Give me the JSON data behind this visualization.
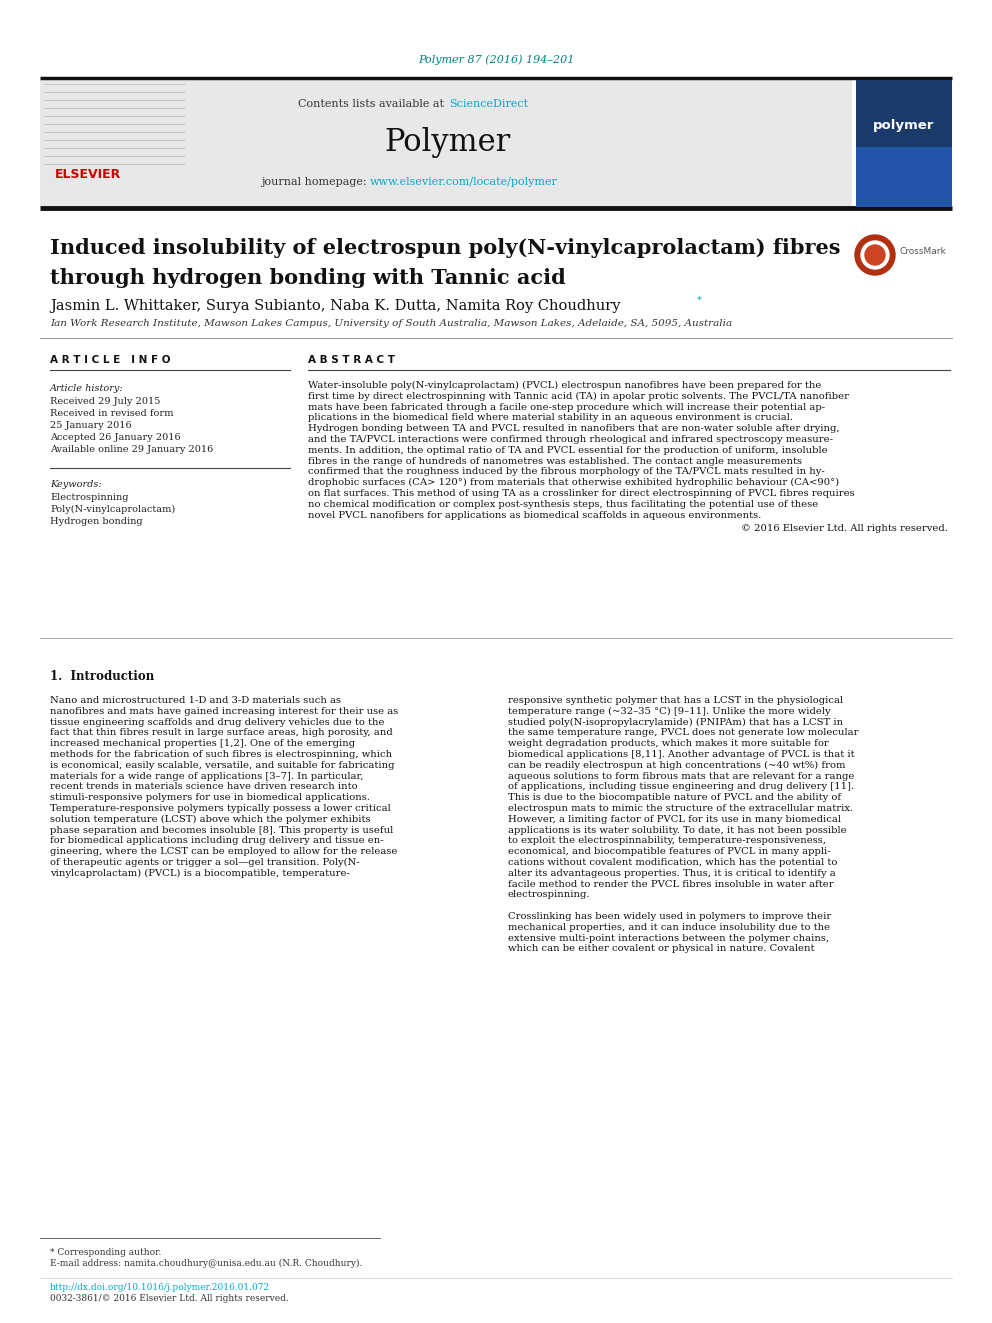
{
  "bg_color": "#ffffff",
  "header_bg_color": "#e8e8e8",
  "journal_ref_text": "Polymer 87 (2016) 194–201",
  "journal_ref_color": "#008080",
  "journal_ref_fontsize": 8,
  "contents_text": "Contents lists available at ",
  "sciencedirect_text": "ScienceDirect",
  "sciencedirect_color": "#00aacc",
  "journal_name": "Polymer",
  "journal_name_fontsize": 22,
  "homepage_text": "journal homepage: ",
  "homepage_url": "www.elsevier.com/locate/polymer",
  "homepage_url_color": "#00aacc",
  "article_title_line1": "Induced insolubility of electrospun poly(N-vinylcaprolactam) fibres",
  "article_title_line2": "through hydrogen bonding with Tannic acid",
  "article_title_fontsize": 15,
  "authors": "Jasmin L. Whittaker, Surya Subianto, Naba K. Dutta, Namita Roy Choudhury",
  "authors_fontsize": 10.5,
  "affiliation": "Ian Work Research Institute, Mawson Lakes Campus, University of South Australia, Mawson Lakes, Adelaide, SA, 5095, Australia",
  "affiliation_fontsize": 7.5,
  "article_info_header": "A R T I C L E   I N F O",
  "abstract_header": "A B S T R A C T",
  "section_header_fontsize": 7.5,
  "article_history_label": "Article history:",
  "received_text": "Received 29 July 2015",
  "received_revised_text": "Received in revised form",
  "received_revised_date": "25 January 2016",
  "accepted_text": "Accepted 26 January 2016",
  "available_text": "Available online 29 January 2016",
  "keywords_label": "Keywords:",
  "keyword1": "Electrospinning",
  "keyword2": "Poly(N-vinylcaprolactam)",
  "keyword3": "Hydrogen bonding",
  "abstract_text": "Water-insoluble poly(N-vinylcaprolactam) (PVCL) electrospun nanofibres have been prepared for the\nfirst time by direct electrospinning with Tannic acid (TA) in apolar protic solvents. The PVCL/TA nanofiber\nmats have been fabricated through a facile one-step procedure which will increase their potential ap-\nplications in the biomedical field where material stability in an aqueous environment is crucial.\nHydrogen bonding between TA and PVCL resulted in nanofibers that are non-water soluble after drying,\nand the TA/PVCL interactions were confirmed through rheological and infrared spectroscopy measure-\nments. In addition, the optimal ratio of TA and PVCL essential for the production of uniform, insoluble\nfibres in the range of hundreds of nanometres was established. The contact angle measurements\nconfirmed that the roughness induced by the fibrous morphology of the TA/PVCL mats resulted in hy-\ndrophobic surfaces (CA> 120°) from materials that otherwise exhibited hydrophilic behaviour (CA<90°)\non flat surfaces. This method of using TA as a crosslinker for direct electrospinning of PVCL fibres requires\nno chemical modification or complex post-synthesis steps, thus facilitating the potential use of these\nnovel PVCL nanofibers for applications as biomedical scaffolds in aqueous environments.",
  "abstract_copyright": "© 2016 Elsevier Ltd. All rights reserved.",
  "abstract_fontsize": 7.2,
  "intro_heading": "1.  Introduction",
  "intro_col1": "Nano and microstructured 1-D and 3-D materials such as\nnanofibres and mats have gained increasing interest for their use as\ntissue engineering scaffolds and drug delivery vehicles due to the\nfact that thin fibres result in large surface areas, high porosity, and\nincreased mechanical properties [1,2]. One of the emerging\nmethods for the fabrication of such fibres is electrospinning, which\nis economical, easily scalable, versatile, and suitable for fabricating\nmaterials for a wide range of applications [3–7]. In particular,\nrecent trends in materials science have driven research into\nstimuli-responsive polymers for use in biomedical applications.\nTemperature-responsive polymers typically possess a lower critical\nsolution temperature (LCST) above which the polymer exhibits\nphase separation and becomes insoluble [8]. This property is useful\nfor biomedical applications including drug delivery and tissue en-\ngineering, where the LCST can be employed to allow for the release\nof therapeutic agents or trigger a sol—gel transition. Poly(N-\nvinylcaprolactam) (PVCL) is a biocompatible, temperature-",
  "intro_col2": "responsive synthetic polymer that has a LCST in the physiological\ntemperature range (~32–35 °C) [9–11]. Unlike the more widely\nstudied poly(N-isopropylacrylamide) (PNIPAm) that has a LCST in\nthe same temperature range, PVCL does not generate low molecular\nweight degradation products, which makes it more suitable for\nbiomedical applications [8,11]. Another advantage of PVCL is that it\ncan be readily electrospun at high concentrations (~40 wt%) from\naqueous solutions to form fibrous mats that are relevant for a range\nof applications, including tissue engineering and drug delivery [11].\nThis is due to the biocompatible nature of PVCL and the ability of\nelectrospun mats to mimic the structure of the extracellular matrix.\nHowever, a limiting factor of PVCL for its use in many biomedical\napplications is its water solubility. To date, it has not been possible\nto exploit the electrospinnability, temperature-responsiveness,\neconomical, and biocompatible features of PVCL in many appli-\ncations without covalent modification, which has the potential to\nalter its advantageous properties. Thus, it is critical to identify a\nfacile method to render the PVCL fibres insoluble in water after\nelectrospinning.",
  "intro_col2b": "Crosslinking has been widely used in polymers to improve their\nmechanical properties, and it can induce insolubility due to the\nextensive multi-point interactions between the polymer chains,\nwhich can be either covalent or physical in nature. Covalent",
  "body_fontsize": 7.2,
  "footnote_corresponding": "* Corresponding author.",
  "footnote_email": "E-mail address: namita.choudhury@unisa.edu.au (N.R. Choudhury).",
  "footnote_doi": "http://dx.doi.org/10.1016/j.polymer.2016.01.072",
  "footnote_issn": "0032-3861/© 2016 Elsevier Ltd. All rights reserved.",
  "footnote_fontsize": 6.5,
  "elsevier_red": "#cc0000"
}
